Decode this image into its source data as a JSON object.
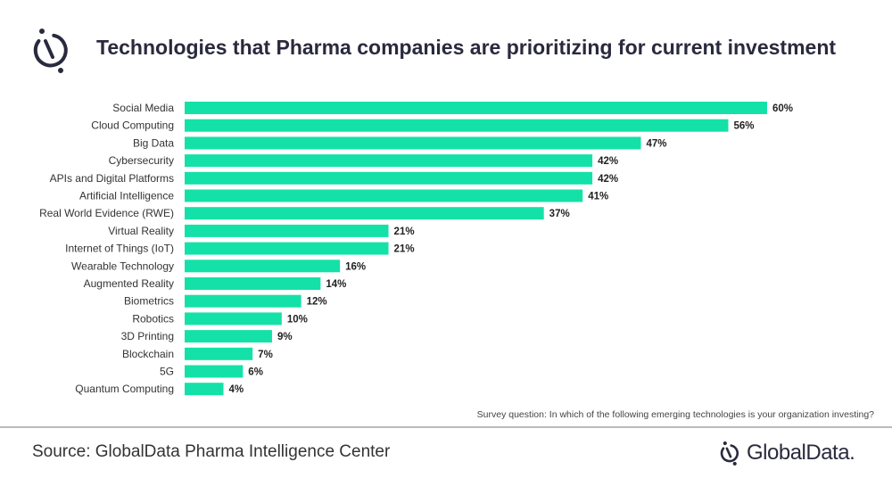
{
  "title": "Technologies that Pharma companies are prioritizing for current investment",
  "survey_note": "Survey question:  In which of the following emerging technologies is your organization investing?",
  "source": "Source: GlobalData Pharma Intelligence Center",
  "brand": "GlobalData.",
  "colors": {
    "bar": "#14e1a8",
    "text": "#2a2a3e"
  },
  "chart_data": {
    "type": "bar",
    "orientation": "horizontal",
    "title": "Technologies that Pharma companies are prioritizing for current investment",
    "categories": [
      "Social Media",
      "Cloud Computing",
      "Big Data",
      "Cybersecurity",
      "APIs and Digital Platforms",
      "Artificial Intelligence",
      "Real World Evidence (RWE)",
      "Virtual Reality",
      "Internet of Things (IoT)",
      "Wearable Technology",
      "Augmented Reality",
      "Biometrics",
      "Robotics",
      "3D Printing",
      "Blockchain",
      "5G",
      "Quantum Computing"
    ],
    "values": [
      60,
      56,
      47,
      42,
      42,
      41,
      37,
      21,
      21,
      16,
      14,
      12,
      10,
      9,
      7,
      6,
      4
    ],
    "labels": [
      "60%",
      "56%",
      "47%",
      "42%",
      "42%",
      "41%",
      "37%",
      "21%",
      "21%",
      "16%",
      "14%",
      "12%",
      "10%",
      "9%",
      "7%",
      "6%",
      "4%"
    ],
    "unit": "%",
    "xlim": [
      0,
      60
    ],
    "grid": false
  }
}
